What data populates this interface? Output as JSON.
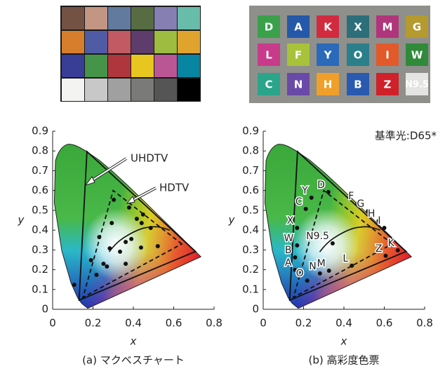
{
  "swatches": [
    [
      "D",
      "A",
      "K",
      "X",
      "M",
      "G"
    ],
    [
      "L",
      "F",
      "Y",
      "O",
      "I",
      "W"
    ],
    [
      "C",
      "N",
      "H",
      "B",
      "Z",
      "N9.5"
    ]
  ],
  "chart_data": [
    {
      "type": "scatter",
      "caption": "(a) マクベスチャート",
      "xlabel": "x",
      "ylabel": "y",
      "xlim": [
        0,
        0.8
      ],
      "ylim": [
        0,
        0.9
      ],
      "xticks": [
        0,
        0.2,
        0.4,
        0.6,
        0.8
      ],
      "yticks": [
        0,
        0.1,
        0.2,
        0.3,
        0.4,
        0.5,
        0.6,
        0.7,
        0.8,
        0.9
      ],
      "gamuts": [
        {
          "label": "UHDTV",
          "style": "solid",
          "x": [
            0.708,
            0.17,
            0.131
          ],
          "y": [
            0.292,
            0.797,
            0.046
          ]
        },
        {
          "label": "HDTV",
          "style": "dashed",
          "x": [
            0.64,
            0.3,
            0.15
          ],
          "y": [
            0.33,
            0.6,
            0.06
          ]
        }
      ],
      "color": "#111111",
      "x": [
        0.19,
        0.217,
        0.252,
        0.269,
        0.107,
        0.231,
        0.283,
        0.379,
        0.417,
        0.448,
        0.441,
        0.486,
        0.39,
        0.362,
        0.334,
        0.293,
        0.362,
        0.438,
        0.521,
        0.303
      ],
      "values": [
        0.248,
        0.174,
        0.23,
        0.216,
        0.124,
        0.365,
        0.308,
        0.514,
        0.457,
        0.479,
        0.436,
        0.411,
        0.355,
        0.34,
        0.291,
        0.436,
        0.23,
        0.312,
        0.319,
        0.553
      ]
    },
    {
      "type": "scatter",
      "caption": "(b) 高彩度色票",
      "xlabel": "x",
      "ylabel": "y",
      "note": "基準光:D65*",
      "xlim": [
        0,
        0.8
      ],
      "ylim": [
        0,
        0.9
      ],
      "xticks": [
        0,
        0.2,
        0.4,
        0.6,
        0.8
      ],
      "yticks": [
        0,
        0.1,
        0.2,
        0.3,
        0.4,
        0.5,
        0.6,
        0.7,
        0.8,
        0.9
      ],
      "gamuts": [
        {
          "style": "solid",
          "x": [
            0.708,
            0.17,
            0.131
          ],
          "y": [
            0.292,
            0.797,
            0.046
          ]
        },
        {
          "style": "dashed",
          "x": [
            0.64,
            0.3,
            0.15
          ],
          "y": [
            0.33,
            0.6,
            0.06
          ]
        }
      ],
      "color": "#111111",
      "point_labels": [
        "D",
        "F",
        "G",
        "H",
        "I",
        "Y",
        "C",
        "X",
        "W",
        "B",
        "A",
        "O",
        "N",
        "M",
        "L",
        "N9.5",
        "Z",
        "K"
      ],
      "x": [
        0.323,
        0.467,
        0.519,
        0.572,
        0.6,
        0.239,
        0.211,
        0.168,
        0.168,
        0.158,
        0.158,
        0.218,
        0.281,
        0.326,
        0.439,
        0.344,
        0.607,
        0.667
      ],
      "values": [
        0.592,
        0.535,
        0.496,
        0.447,
        0.411,
        0.564,
        0.507,
        0.411,
        0.323,
        0.262,
        0.199,
        0.145,
        0.181,
        0.195,
        0.22,
        0.333,
        0.27,
        0.298
      ]
    }
  ]
}
